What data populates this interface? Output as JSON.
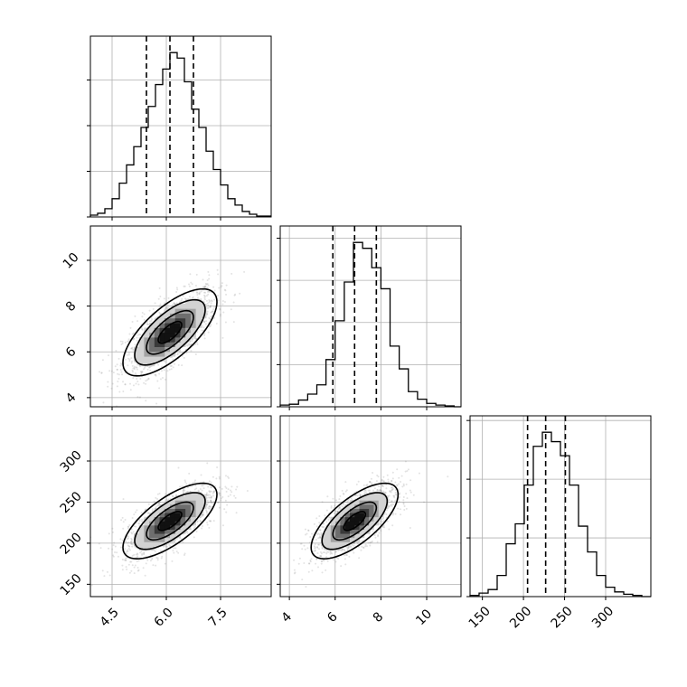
{
  "chart_data": {
    "type": "corner",
    "title": "",
    "grid": true,
    "params": [
      {
        "index": 0,
        "mean": 6.1,
        "sd": 0.65,
        "range": [
          3.9,
          8.9
        ],
        "quantiles": [
          5.45,
          6.1,
          6.75
        ],
        "ticks": [
          4.5,
          6.0,
          7.5
        ],
        "tick_labels": [
          "4.5",
          "6.0",
          "7.5"
        ]
      },
      {
        "index": 1,
        "mean": 6.85,
        "sd": 0.95,
        "range": [
          3.6,
          11.5
        ],
        "quantiles": [
          5.9,
          6.85,
          7.8
        ],
        "ticks": [
          4,
          6,
          8,
          10
        ],
        "tick_labels": [
          "4",
          "6",
          "8",
          "10"
        ]
      },
      {
        "index": 2,
        "mean": 227,
        "sd": 23,
        "range": [
          135,
          355
        ],
        "quantiles": [
          205,
          227,
          251
        ],
        "ticks": [
          150,
          200,
          250,
          300
        ],
        "tick_labels": [
          "150",
          "200",
          "250",
          "300"
        ]
      }
    ],
    "histograms": [
      {
        "param": 0,
        "bin_edges": [
          3.9,
          4.1,
          4.3,
          4.5,
          4.7,
          4.9,
          5.1,
          5.3,
          5.5,
          5.7,
          5.9,
          6.1,
          6.3,
          6.5,
          6.7,
          6.9,
          7.1,
          7.3,
          7.5,
          7.7,
          7.9,
          8.1,
          8.3,
          8.5,
          8.7,
          8.9
        ],
        "counts": [
          2,
          4,
          9,
          20,
          37,
          57,
          77,
          98,
          121,
          145,
          162,
          180,
          174,
          148,
          118,
          98,
          72,
          52,
          35,
          20,
          13,
          6,
          3,
          1,
          1
        ]
      },
      {
        "param": 1,
        "bin_edges": [
          3.6,
          4.0,
          4.4,
          4.8,
          5.2,
          5.6,
          6.0,
          6.4,
          6.8,
          7.2,
          7.6,
          8.0,
          8.4,
          8.8,
          9.2,
          9.6,
          10.0,
          10.4,
          10.8,
          11.2,
          11.5
        ],
        "counts": [
          2,
          3,
          8,
          15,
          26,
          56,
          102,
          148,
          195,
          188,
          165,
          140,
          72,
          45,
          18,
          9,
          4,
          2,
          1,
          0
        ]
      },
      {
        "param": 2,
        "bin_edges": [
          135,
          146,
          157,
          168,
          179,
          190,
          201,
          212,
          223,
          234,
          245,
          256,
          267,
          278,
          289,
          300,
          311,
          322,
          333,
          344,
          355
        ],
        "counts": [
          1,
          3,
          6,
          18,
          45,
          62,
          95,
          128,
          140,
          132,
          120,
          95,
          60,
          38,
          18,
          8,
          4,
          2,
          1,
          0
        ]
      }
    ],
    "pairs": [
      {
        "x_param": 0,
        "y_param": 1,
        "correlation": 0.7
      },
      {
        "x_param": 0,
        "y_param": 2,
        "correlation": 0.7
      },
      {
        "x_param": 1,
        "y_param": 2,
        "correlation": 0.7
      }
    ],
    "contour_sigmas": [
      0.5,
      1.0,
      1.5,
      2.0
    ],
    "colors": {
      "line": "#000000",
      "grid": "#b0b0b0",
      "points": "#7f7f7f"
    }
  }
}
